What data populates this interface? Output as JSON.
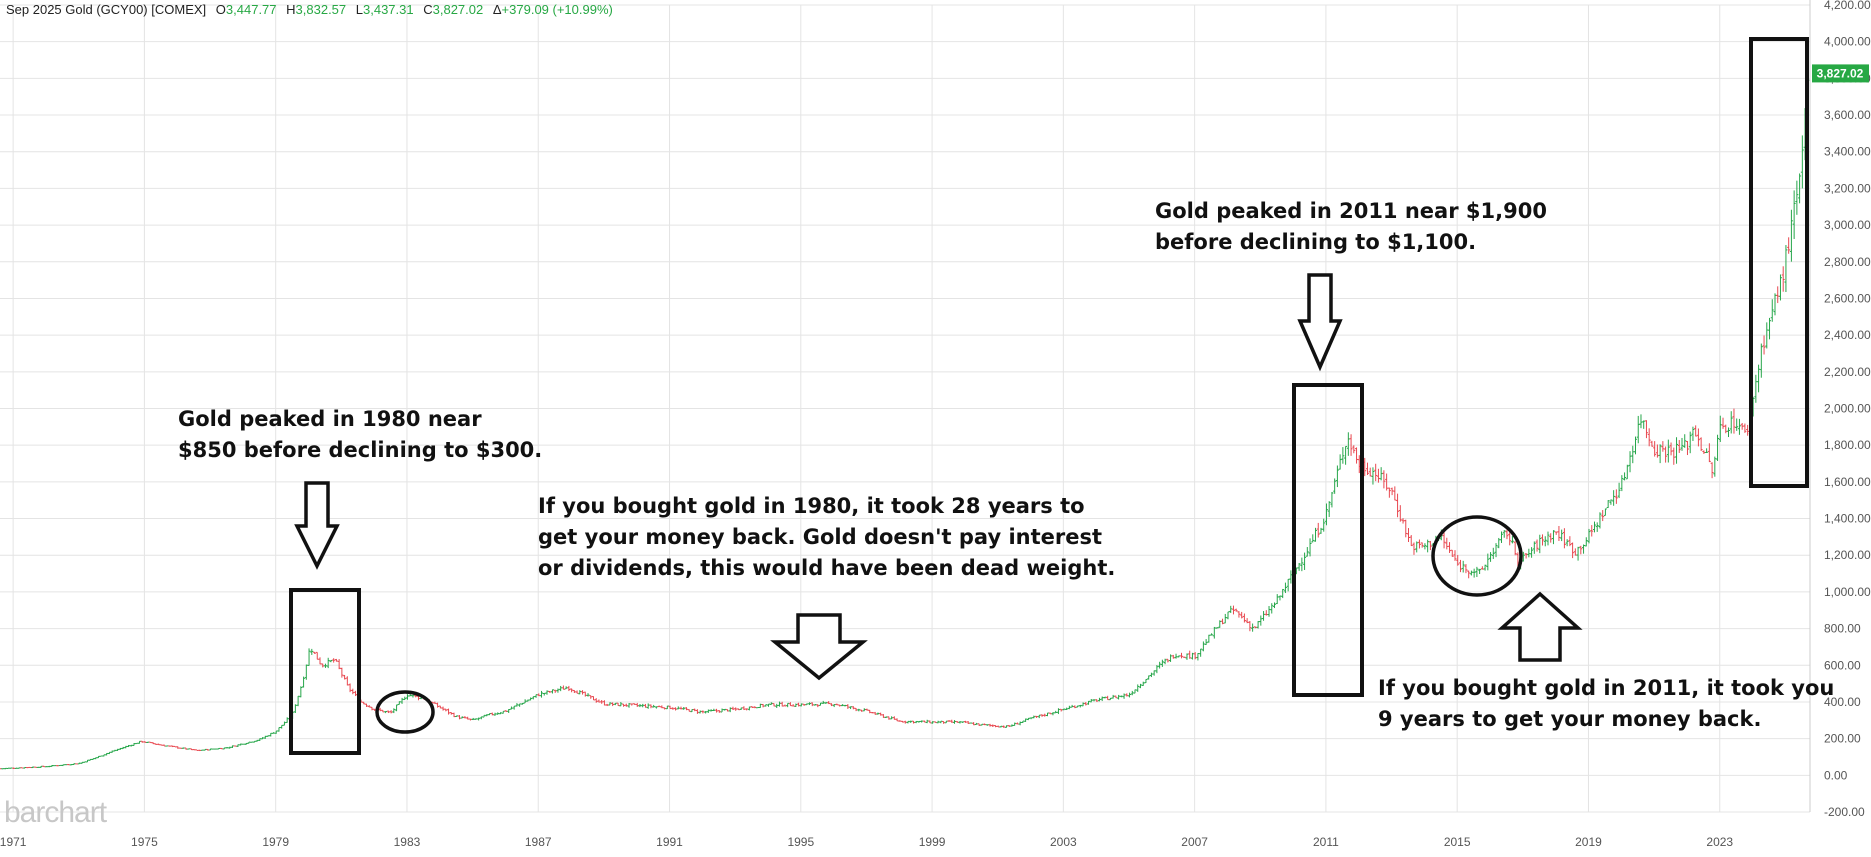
{
  "header": {
    "title": "Sep 2025 Gold (GCY00) [COMEX]",
    "open_label": "O",
    "open": "3,447.77",
    "high_label": "H",
    "high": "3,832.57",
    "low_label": "L",
    "low": "3,437.31",
    "close_label": "C",
    "close": "3,827.02",
    "change_label": "Δ",
    "change": "+379.09 (+10.99%)"
  },
  "watermark": "barchart",
  "last_price_tag": "3,827.02",
  "colors": {
    "up": "#26a64a",
    "down": "#e8474f",
    "grid": "#e4e4e4",
    "tag": "#27a844",
    "annotation": "#111111"
  },
  "annotations": {
    "peak1980": "Gold peaked in 1980 near\n$850 before declining to $300.",
    "bought1980": "If you bought gold in 1980, it took 28 years to\nget your money back. Gold doesn't pay interest\nor dividends, this would have been dead weight.",
    "peak2011": "Gold peaked in 2011 near $1,900\nbefore declining to $1,100.",
    "bought2011": "If you bought gold in 2011, it took you\n9 years to get your money back."
  },
  "chart_data": {
    "type": "bar",
    "bar_style": "ohlc",
    "xlabel": "",
    "ylabel": "",
    "ylim": [
      -200,
      4200
    ],
    "xlim": [
      1970.6,
      2025.75
    ],
    "grid": true,
    "y_ticks": [
      "-200.00",
      "0.00",
      "200.00",
      "400.00",
      "600.00",
      "800.00",
      "1,000.00",
      "1,200.00",
      "1,400.00",
      "1,600.00",
      "1,800.00",
      "2,000.00",
      "2,200.00",
      "2,400.00",
      "2,600.00",
      "2,800.00",
      "3,000.00",
      "3,200.00",
      "3,400.00",
      "3,600.00",
      "3,800.00",
      "4,000.00",
      "4,200.00"
    ],
    "x_ticks": [
      "1971",
      "1975",
      "1979",
      "1983",
      "1987",
      "1991",
      "1995",
      "1999",
      "2003",
      "2007",
      "2011",
      "2015",
      "2019",
      "2023"
    ],
    "series": [
      {
        "x": [
          1970.6,
          1972.0,
          1973.0,
          1973.5,
          1974.0,
          1974.9,
          1975.5,
          1976.6,
          1977.5,
          1978.5,
          1979.0,
          1979.5,
          1979.8,
          1980.05,
          1980.4,
          1980.8,
          1981.2,
          1981.6,
          1982.0,
          1982.5,
          1983.0,
          1983.5,
          1984.0,
          1984.5,
          1985.0,
          1985.5,
          1986.0,
          1987.0,
          1987.9,
          1988.5,
          1989.0,
          1990.0,
          1991.0,
          1992.0,
          1993.0,
          1994.0,
          1995.0,
          1996.0,
          1997.0,
          1998.0,
          1999.0,
          1999.8,
          2000.5,
          2001.3,
          2002.0,
          2003.0,
          2004.0,
          2005.0,
          2006.0,
          2006.4,
          2007.0,
          2008.0,
          2008.2,
          2008.8,
          2009.5,
          2010.0,
          2010.5,
          2011.0,
          2011.2,
          2011.65,
          2012.0,
          2012.5,
          2013.0,
          2013.3,
          2013.6,
          2014.0,
          2014.5,
          2015.0,
          2015.7,
          2016.0,
          2016.5,
          2016.9,
          2017.5,
          2018.0,
          2018.6,
          2019.0,
          2019.6,
          2020.0,
          2020.6,
          2021.0,
          2021.6,
          2022.0,
          2022.2,
          2022.8,
          2023.0,
          2023.5,
          2023.8,
          2024.0,
          2024.3,
          2024.8,
          2025.0,
          2025.3,
          2025.5,
          2025.7
        ],
        "y": [
          36,
          48,
          65,
          95,
          130,
          185,
          165,
          135,
          150,
          195,
          240,
          330,
          500,
          700,
          600,
          630,
          480,
          400,
          360,
          340,
          440,
          420,
          370,
          320,
          300,
          330,
          350,
          440,
          480,
          430,
          390,
          380,
          370,
          345,
          360,
          385,
          385,
          390,
          350,
          295,
          290,
          290,
          275,
          265,
          310,
          360,
          410,
          440,
          610,
          660,
          650,
          880,
          900,
          800,
          950,
          1100,
          1250,
          1420,
          1550,
          1850,
          1700,
          1650,
          1550,
          1400,
          1250,
          1250,
          1300,
          1150,
          1100,
          1200,
          1330,
          1160,
          1270,
          1330,
          1220,
          1300,
          1480,
          1580,
          1950,
          1780,
          1770,
          1800,
          1900,
          1650,
          1900,
          1930,
          1850,
          2050,
          2350,
          2650,
          2800,
          3100,
          3300,
          3827
        ],
        "up_color": "#26a64a",
        "down_color": "#e8474f"
      }
    ],
    "last_value": 3827.02
  }
}
